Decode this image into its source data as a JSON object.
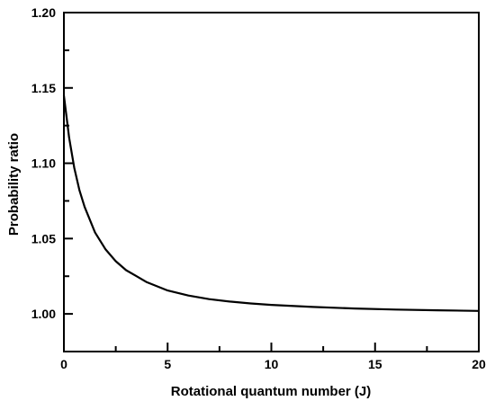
{
  "chart_data": {
    "type": "line",
    "title": "",
    "xlabel": "Rotational quantum number (J)",
    "ylabel": "Probability ratio",
    "xlim": [
      0,
      20
    ],
    "ylim": [
      0.975,
      1.2
    ],
    "x_ticks": [
      0,
      5,
      10,
      15,
      20
    ],
    "x_tick_labels": [
      "0",
      "5",
      "10",
      "15",
      "20"
    ],
    "x_minor_ticks": [
      2.5,
      7.5,
      12.5,
      17.5
    ],
    "y_ticks": [
      1.0,
      1.05,
      1.1,
      1.15,
      1.2
    ],
    "y_tick_labels": [
      "1.00",
      "1.05",
      "1.10",
      "1.15",
      "1.20"
    ],
    "y_minor_ticks": [
      0.975,
      1.025,
      1.075,
      1.125,
      1.175
    ],
    "grid": false,
    "legend": "none",
    "line_color": "#000000",
    "series": [
      {
        "x": [
          0,
          0.25,
          0.5,
          0.75,
          1,
          1.5,
          2,
          2.5,
          3,
          3.5,
          4,
          5,
          6,
          7,
          8,
          9,
          10,
          12,
          14,
          16,
          18,
          20
        ],
        "values": [
          1.145,
          1.117,
          1.097,
          1.082,
          1.071,
          1.054,
          1.043,
          1.035,
          1.029,
          1.025,
          1.021,
          1.0155,
          1.0122,
          1.0098,
          1.0082,
          1.0069,
          1.006,
          1.0046,
          1.0036,
          1.0029,
          1.0024,
          1.002
        ]
      }
    ]
  }
}
